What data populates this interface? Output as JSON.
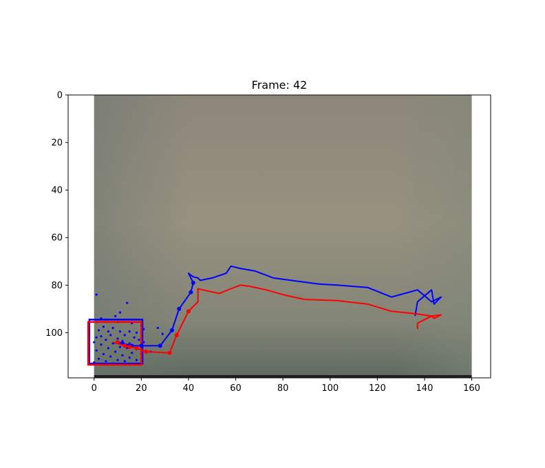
{
  "chart_data": {
    "type": "line",
    "title": "Frame: 42",
    "xlabel": "",
    "ylabel": "",
    "xlim": [
      -11,
      168
    ],
    "ylim": [
      119,
      0
    ],
    "y_inverted": true,
    "grid": false,
    "x_ticks": [
      0,
      20,
      40,
      60,
      80,
      100,
      120,
      140,
      160
    ],
    "y_ticks": [
      0,
      20,
      40,
      60,
      80,
      100
    ],
    "background_image": {
      "extent_x": [
        0,
        160
      ],
      "extent_y": [
        0,
        119
      ],
      "colors": {
        "top": "#8d877b",
        "middle": "#97917f",
        "bottom": "#5f6a60",
        "edge_left": "#6f7872",
        "edge_right": "#7f887a",
        "floor": "#202020"
      }
    },
    "series": [
      {
        "color": "#0000ff",
        "values": [
          [
            136,
            93
          ],
          [
            137,
            87
          ],
          [
            143,
            82
          ],
          [
            144,
            88
          ],
          [
            147,
            85
          ],
          [
            143,
            87
          ],
          [
            137,
            82
          ],
          [
            126,
            85
          ],
          [
            116,
            81
          ],
          [
            103,
            80
          ],
          [
            95,
            79.5
          ],
          [
            76,
            77
          ],
          [
            68,
            74
          ],
          [
            62,
            73
          ],
          [
            58,
            72
          ],
          [
            56,
            75
          ],
          [
            50,
            77
          ],
          [
            45,
            78
          ],
          [
            44,
            77
          ],
          [
            42,
            76.5
          ],
          [
            40,
            75
          ],
          [
            42,
            79
          ],
          [
            41,
            83
          ],
          [
            36,
            90
          ],
          [
            33,
            99
          ],
          [
            28,
            105.5
          ],
          [
            16,
            105.5
          ],
          [
            10,
            104
          ],
          [
            8,
            104.5
          ]
        ],
        "markers": [
          [
            42,
            79
          ],
          [
            41,
            83
          ],
          [
            36,
            90
          ],
          [
            33,
            99
          ],
          [
            28,
            105.5
          ],
          [
            20,
            105.5
          ],
          [
            16,
            105.5
          ],
          [
            12,
            104.5
          ]
        ]
      },
      {
        "color": "#ff0000",
        "values": [
          [
            137,
            98.5
          ],
          [
            137,
            96
          ],
          [
            143,
            93
          ],
          [
            144,
            94
          ],
          [
            147,
            92.5
          ],
          [
            143,
            93
          ],
          [
            136,
            92
          ],
          [
            126,
            91
          ],
          [
            116,
            88
          ],
          [
            103,
            86.5
          ],
          [
            89,
            86
          ],
          [
            80,
            84
          ],
          [
            73,
            82
          ],
          [
            66,
            80.5
          ],
          [
            62,
            80
          ],
          [
            58,
            81.5
          ],
          [
            53,
            83.5
          ],
          [
            46,
            82
          ],
          [
            44,
            81.5
          ],
          [
            44,
            87
          ],
          [
            40,
            91
          ],
          [
            35,
            101
          ],
          [
            32,
            108.5
          ],
          [
            22,
            108
          ],
          [
            18,
            106.5
          ],
          [
            13,
            105.5
          ],
          [
            8,
            104
          ]
        ],
        "markers": [
          [
            40,
            91
          ],
          [
            35,
            101
          ],
          [
            32,
            108.5
          ],
          [
            22,
            108
          ],
          [
            18,
            106.5
          ],
          [
            15,
            106
          ],
          [
            13,
            105.5
          ],
          [
            10,
            104
          ]
        ]
      }
    ],
    "scatter_points": {
      "color": "#0000ff",
      "points": [
        [
          1,
          84
        ],
        [
          14,
          87.5
        ],
        [
          11,
          91.5
        ],
        [
          9,
          93
        ],
        [
          3,
          94
        ],
        [
          5,
          94.5
        ],
        [
          1,
          95.5
        ],
        [
          10,
          95.5
        ],
        [
          16,
          96
        ],
        [
          20,
          97
        ],
        [
          4,
          97.5
        ],
        [
          8,
          98
        ],
        [
          27,
          98
        ],
        [
          21,
          98.5
        ],
        [
          2,
          99
        ],
        [
          6,
          99.5
        ],
        [
          11,
          99.5
        ],
        [
          15,
          99.5
        ],
        [
          18,
          100
        ],
        [
          29,
          100.5
        ],
        [
          7,
          101
        ],
        [
          13,
          101
        ],
        [
          3,
          101.5
        ],
        [
          1,
          102
        ],
        [
          10,
          102.5
        ],
        [
          17,
          102
        ],
        [
          5,
          103
        ],
        [
          12,
          103.5
        ],
        [
          19,
          103
        ],
        [
          0,
          104
        ],
        [
          8,
          104.5
        ],
        [
          15,
          104.5
        ],
        [
          3,
          105
        ],
        [
          11,
          106
        ],
        [
          6,
          106.5
        ],
        [
          14,
          106.5
        ],
        [
          18,
          107
        ],
        [
          1,
          107.5
        ],
        [
          9,
          108
        ],
        [
          16,
          108.5
        ],
        [
          4,
          109
        ],
        [
          12,
          109.5
        ],
        [
          20,
          109
        ],
        [
          7,
          110
        ],
        [
          2,
          111
        ],
        [
          15,
          110.5
        ],
        [
          10,
          111.5
        ],
        [
          5,
          112
        ],
        [
          13,
          112
        ],
        [
          18,
          111.5
        ],
        [
          0,
          112.5
        ],
        [
          8,
          113
        ],
        [
          24,
          108
        ],
        [
          21,
          104
        ]
      ]
    },
    "rectangles": [
      {
        "color": "#0000ff",
        "x": [
          -2,
          20.5
        ],
        "y": [
          94.5,
          113
        ]
      },
      {
        "color": "#ff0000",
        "x": [
          -2.5,
          20
        ],
        "y": [
          95.5,
          113.5
        ]
      }
    ]
  }
}
